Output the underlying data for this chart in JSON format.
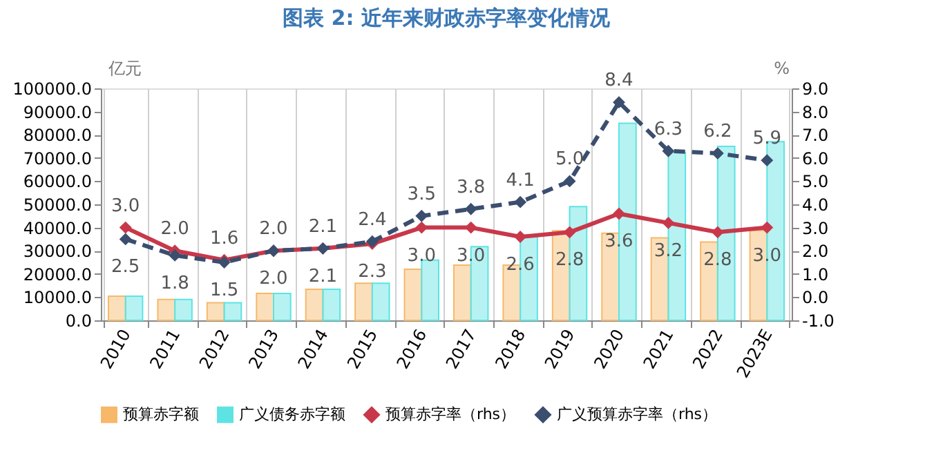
{
  "chart_data": {
    "type": "bar",
    "title": "图表 2:  近年来财政赤字率变化情况",
    "ylabel": "亿元",
    "y2label": "%",
    "categories": [
      "2010",
      "2011",
      "2012",
      "2013",
      "2014",
      "2015",
      "2016",
      "2017",
      "2018",
      "2019",
      "2020",
      "2021",
      "2022",
      "2023E"
    ],
    "series": [
      {
        "name": "预算赤字额",
        "color": "#f7b869",
        "values": [
          10400,
          9000,
          7600,
          11600,
          13400,
          16000,
          22000,
          23800,
          23800,
          38600,
          37600,
          35600,
          33800,
          38800
        ]
      },
      {
        "name": "广义债务赤字额",
        "color": "#5ee3e3",
        "values": [
          10400,
          9000,
          7600,
          11600,
          13400,
          16000,
          26000,
          31800,
          36000,
          49000,
          85000,
          72400,
          75000,
          77000
        ]
      },
      {
        "name": "预算赤字率（rhs）",
        "type": "line",
        "axis": "y2",
        "color": "#c8384a",
        "line_style": "solid",
        "marker": "diamond",
        "values": [
          3.0,
          2.0,
          1.6,
          2.0,
          2.1,
          2.3,
          3.0,
          3.0,
          2.6,
          2.8,
          3.6,
          3.2,
          2.8,
          3.0
        ],
        "value_labels": [
          "3.0",
          "2.0",
          "1.6",
          "2.0",
          "2.1",
          "2.3",
          "3.0",
          "3.0",
          "2.6",
          "2.8",
          "3.6",
          "3.2",
          "2.8",
          "3.0"
        ]
      },
      {
        "name": "广义预算赤字率（rhs）",
        "type": "line",
        "axis": "y2",
        "color": "#3b4e6e",
        "line_style": "dashed",
        "marker": "diamond",
        "values": [
          2.5,
          1.8,
          1.5,
          2.0,
          2.1,
          2.4,
          3.5,
          3.8,
          4.1,
          5.0,
          8.4,
          6.3,
          6.2,
          5.9
        ],
        "value_labels": [
          "2.5",
          "1.8",
          "1.5",
          "2.0",
          "2.1",
          "2.4",
          "3.5",
          "3.8",
          "4.1",
          "5.0",
          "8.4",
          "6.3",
          "6.2",
          "5.9"
        ]
      }
    ],
    "ylim": [
      0,
      100000
    ],
    "yticks": [
      {
        "value": 0,
        "label": "0.0"
      },
      {
        "value": 10000,
        "label": "10000.0"
      },
      {
        "value": 20000,
        "label": "20000.0"
      },
      {
        "value": 30000,
        "label": "30000.0"
      },
      {
        "value": 40000,
        "label": "40000.0"
      },
      {
        "value": 50000,
        "label": "50000.0"
      },
      {
        "value": 60000,
        "label": "60000.0"
      },
      {
        "value": 70000,
        "label": "70000.0"
      },
      {
        "value": 80000,
        "label": "80000.0"
      },
      {
        "value": 90000,
        "label": "90000.0"
      },
      {
        "value": 100000,
        "label": "100000.0"
      }
    ],
    "y2lim": [
      -1,
      9
    ],
    "y2ticks": [
      {
        "value": -1,
        "label": "-1.0"
      },
      {
        "value": 0,
        "label": "0.0"
      },
      {
        "value": 1,
        "label": "1.0"
      },
      {
        "value": 2,
        "label": "2.0"
      },
      {
        "value": 3,
        "label": "3.0"
      },
      {
        "value": 4,
        "label": "4.0"
      },
      {
        "value": 5,
        "label": "5.0"
      },
      {
        "value": 6,
        "label": "6.0"
      },
      {
        "value": 7,
        "label": "7.0"
      },
      {
        "value": 8,
        "label": "8.0"
      },
      {
        "value": 9,
        "label": "9.0"
      }
    ],
    "grid": "x",
    "legend": "bottom"
  }
}
